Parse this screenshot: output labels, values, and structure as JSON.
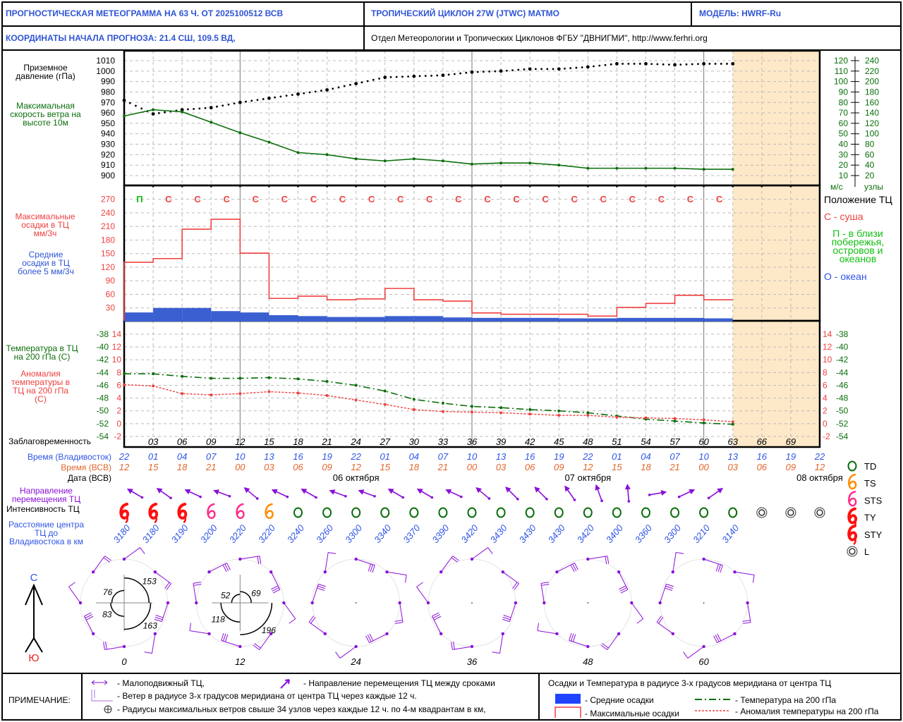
{
  "header": {
    "title": "ПРОГНОСТИЧЕСКАЯ МЕТЕОГРАММА НА 63 Ч. ОТ 2025100512 ВСВ",
    "cyclone": "ТРОПИЧЕСКИЙ ЦИКЛОН  27W (JTWC)  MATMO",
    "model": "МОДЕЛЬ:   HWRF-Ru",
    "coords": "КООРДИНАТЫ НАЧАЛА ПРОГНОЗА:  21.4  СШ,   109.5  ВД,",
    "org": "Отдел Метеорологии и Тропических Циклонов ФГБУ \"ДВНИГМИ\",  http://www.ferhri.org"
  },
  "labels": {
    "pressure": "Приземное давление (гПа)",
    "wind": "Максимальная скорость ветра на высоте 10м",
    "wind_unit_ms": "м/с",
    "wind_unit_kt": "узлы",
    "precip_max": "Максимальные осадки в ТЦ мм/3ч",
    "precip_mean": "Средние осадки в ТЦ более 5 мм/3ч",
    "temp": "Температура в ТЦ на 200 гПа (С)",
    "anom": "Аномалия температуры в ТЦ на 200 гПа (С)",
    "lead": "Заблаговременность",
    "vlad_time": "Время (Владивосток)",
    "utc_time": "Время (ВСВ)",
    "date": "Дата (ВСВ)",
    "direction": "Направление перемещения ТЦ",
    "intensity": "Интенсивность ТЦ",
    "distance": "Расстояние центра ТЦ до Владивостока в км",
    "north": "С",
    "south": "Ю",
    "position_title": "Положение ТЦ",
    "position_land": "С - суша",
    "position_coast": "П - в близи побережья, островов и океанов",
    "position_ocean": "О - океан"
  },
  "intensity_legend": [
    "TD",
    "TS",
    "STS",
    "TY",
    "STY",
    "L"
  ],
  "notes": {
    "title": "ПРИМЕЧАНИЕ:",
    "stationary": "- Малоподвижный ТЦ,",
    "movement": "- Направление перемещения ТЦ между сроками",
    "wind": "- Ветер в радиусе 3-х градусов меридиана от центра ТЦ через каждые 12 ч.",
    "radii": "- Радиусы максимальных ветров свыше 34 узлов через каждые 12 ч. по 4-м квадрантам в км,",
    "precip_title": "Осадки и Температура в радиусе 3-х градусов меридиана от центра ТЦ",
    "mean_precip": "- Средние осадки",
    "max_precip": "- Максимальные осадки",
    "temp": "- Температура на 200 гПа",
    "anom": "- Аномалия температуры на 200 гПа"
  },
  "colors": {
    "header_blue": "#2f55d4",
    "wind_green": "#0a6e0a",
    "precip_red": "#f04040",
    "precip_blue": "#3a5fd0",
    "shade": "#fde8c8",
    "purple": "#8a10d8",
    "vlad_blue": "#2f55e8",
    "utc_orange": "#e0662a"
  },
  "time_axis": {
    "hours": [
      0,
      3,
      6,
      9,
      12,
      15,
      18,
      21,
      24,
      27,
      30,
      33,
      36,
      39,
      42,
      45,
      48,
      51,
      54,
      57,
      60,
      63,
      66,
      69,
      72
    ],
    "lead_labels": [
      "03",
      "06",
      "09",
      "12",
      "15",
      "18",
      "21",
      "24",
      "27",
      "30",
      "33",
      "36",
      "39",
      "42",
      "45",
      "48",
      "51",
      "54",
      "57",
      "60",
      "63",
      "66",
      "69"
    ],
    "vlad_times": [
      "22",
      "01",
      "04",
      "07",
      "10",
      "13",
      "16",
      "19",
      "22",
      "01",
      "04",
      "07",
      "10",
      "13",
      "16",
      "19",
      "22",
      "01",
      "04",
      "07",
      "10",
      "13",
      "16",
      "19",
      "22"
    ],
    "utc_times": [
      "12",
      "15",
      "18",
      "21",
      "00",
      "03",
      "06",
      "09",
      "12",
      "15",
      "18",
      "21",
      "00",
      "03",
      "06",
      "09",
      "12",
      "15",
      "18",
      "21",
      "00",
      "03",
      "06",
      "09",
      "12"
    ],
    "dates": [
      {
        "text": "06 октября",
        "at_hour": 24
      },
      {
        "text": "07 октября",
        "at_hour": 48
      },
      {
        "text": "08 октября",
        "at_hour": 72
      }
    ],
    "forecast_end_hour": 63
  },
  "chart_data": [
    {
      "type": "line",
      "title": "Приземное давление и максимальная скорость ветра",
      "x": [
        0,
        3,
        6,
        9,
        12,
        15,
        18,
        21,
        24,
        27,
        30,
        33,
        36,
        39,
        42,
        45,
        48,
        51,
        54,
        57,
        60,
        63
      ],
      "series": [
        {
          "name": "Приземное давление (гПа)",
          "style": "dotted",
          "values": [
            972,
            959,
            963,
            965,
            970,
            974,
            978,
            982,
            988,
            994,
            995,
            996,
            999,
            1000,
            1002,
            1002,
            1004,
            1007,
            1007,
            1006,
            1007,
            1007
          ]
        },
        {
          "name": "Максимальная скорость ветра (м/с)",
          "style": "solid",
          "values": [
            67,
            73,
            71,
            61,
            51,
            42,
            32,
            30,
            26,
            24,
            26,
            24,
            21,
            22,
            22,
            20,
            17,
            17,
            17,
            17,
            16,
            16
          ]
        }
      ],
      "ylim_pressure": [
        900,
        1010
      ],
      "pressure_ticks": [
        1010,
        1000,
        990,
        980,
        970,
        960,
        950,
        940,
        930,
        920,
        910,
        900
      ],
      "ms_ticks": [
        120,
        110,
        100,
        90,
        80,
        70,
        60,
        50,
        40,
        30,
        20,
        10
      ],
      "kt_ticks": [
        240,
        220,
        200,
        180,
        160,
        140,
        120,
        100,
        80,
        60,
        40,
        20
      ],
      "xlim": [
        0,
        72
      ]
    },
    {
      "type": "bar",
      "title": "Осадки в ТЦ (мм/3ч)",
      "intervals_start": [
        0,
        3,
        6,
        9,
        12,
        15,
        18,
        21,
        24,
        27,
        30,
        33,
        36,
        39,
        42,
        45,
        48,
        51,
        54,
        57,
        60
      ],
      "series": [
        {
          "name": "Максимальные осадки",
          "values": [
            131,
            139,
            204,
            226,
            151,
            51,
            56,
            48,
            50,
            73,
            48,
            45,
            19,
            16,
            16,
            16,
            12,
            31,
            40,
            58,
            48
          ]
        },
        {
          "name": "Средние осадки",
          "values": [
            20,
            30,
            30,
            23,
            20,
            14,
            12,
            10,
            10,
            12,
            12,
            9,
            8,
            8,
            8,
            7,
            7,
            8,
            8,
            8,
            7
          ]
        }
      ],
      "position": [
        "П",
        "С",
        "С",
        "С",
        "С",
        "С",
        "С",
        "С",
        "С",
        "С",
        "С",
        "С",
        "С",
        "С",
        "С",
        "С",
        "С",
        "С",
        "С",
        "С",
        "С"
      ],
      "ticks": [
        270,
        240,
        210,
        180,
        150,
        120,
        90,
        60,
        30
      ],
      "ylim": [
        0,
        285
      ]
    },
    {
      "type": "line",
      "title": "Температура и аномалия на 200 гПа",
      "x": [
        0,
        3,
        6,
        9,
        12,
        15,
        18,
        21,
        24,
        27,
        30,
        33,
        36,
        39,
        42,
        45,
        48,
        51,
        54,
        57,
        60,
        63
      ],
      "series": [
        {
          "name": "Температура на 200 гПа (С)",
          "values": [
            -44.2,
            -44.2,
            -44.6,
            -44.9,
            -44.9,
            -44.8,
            -45.0,
            -45.4,
            -46.0,
            -46.9,
            -48.2,
            -48.8,
            -49.3,
            -49.5,
            -49.8,
            -50.0,
            -50.3,
            -50.8,
            -51.3,
            -51.6,
            -51.9,
            -52.1
          ]
        },
        {
          "name": "Аномалия температуры на 200 гПа (С)",
          "values": [
            6.1,
            5.9,
            4.7,
            4.5,
            4.7,
            5.0,
            4.8,
            4.4,
            3.7,
            3.0,
            2.2,
            1.9,
            1.8,
            1.7,
            1.5,
            1.3,
            1.3,
            1.0,
            0.9,
            0.8,
            0.6,
            0.3
          ]
        }
      ],
      "temp_ticks": [
        -38,
        -40,
        -42,
        -44,
        -46,
        -48,
        -50,
        -52,
        -54
      ],
      "anom_ticks": [
        14,
        12,
        10,
        8,
        6,
        4,
        2,
        0,
        -2
      ]
    }
  ],
  "track": {
    "direction_deg": [
      300,
      305,
      295,
      290,
      310,
      295,
      300,
      290,
      290,
      300,
      300,
      295,
      310,
      315,
      315,
      325,
      340,
      355,
      80,
      65,
      55
    ],
    "intensity": [
      "TY",
      "TY",
      "TY",
      "STS",
      "STS",
      "TS",
      "TD",
      "TD",
      "TD",
      "TD",
      "TD",
      "TD",
      "TD",
      "TD",
      "TD",
      "TD",
      "TD",
      "TD",
      "TD",
      "TD",
      "TD",
      "TD",
      "L",
      "L",
      "L"
    ],
    "distance_km": [
      "3180",
      "3180",
      "3190",
      "3200",
      "3220",
      "3220",
      "3240",
      "3260",
      "3300",
      "3340",
      "3370",
      "3390",
      "3420",
      "3430",
      "3430",
      "3430",
      "3420",
      "3400",
      "3360",
      "3300",
      "3210",
      "3140"
    ]
  },
  "wind_roses": [
    {
      "hour_label": "0",
      "radii_km": {
        "ne": "153",
        "se": "163",
        "sw": "83",
        "nw": "76"
      }
    },
    {
      "hour_label": "12",
      "radii_km": {
        "ne": "69",
        "se": "196",
        "sw": "118",
        "nw": "52"
      }
    },
    {
      "hour_label": "24"
    },
    {
      "hour_label": "36"
    },
    {
      "hour_label": "48"
    },
    {
      "hour_label": "60"
    }
  ]
}
